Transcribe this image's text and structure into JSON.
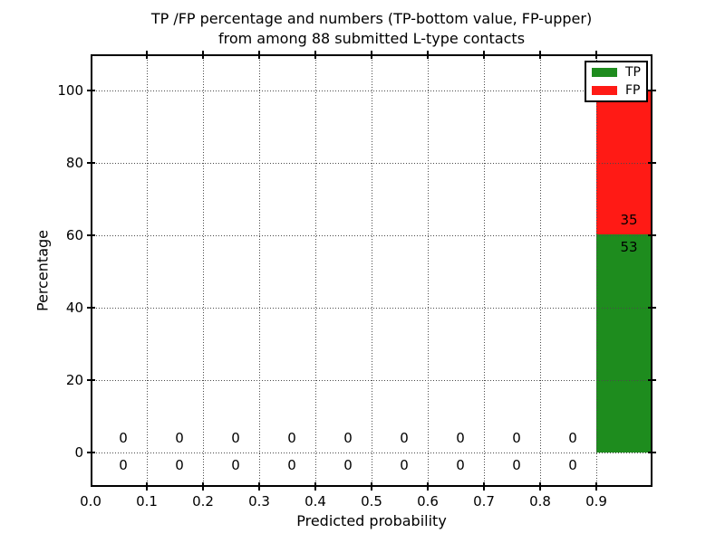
{
  "chart_data": {
    "type": "bar",
    "stacked": true,
    "title_line1": "TP /FP percentage and numbers (TP-bottom value, FP-upper)",
    "title_line2": "from among 88 submitted L-type contacts",
    "xlabel": "Predicted probability",
    "ylabel": "Percentage",
    "total_contacts": 88,
    "x_axis": {
      "min": 0.0,
      "max": 1.0,
      "bin_width": 0.1,
      "tick_values": [
        0.0,
        0.1,
        0.2,
        0.3,
        0.4,
        0.5,
        0.6,
        0.7,
        0.8,
        0.9
      ],
      "tick_labels": [
        "0.0",
        "0.1",
        "0.2",
        "0.3",
        "0.4",
        "0.5",
        "0.6",
        "0.7",
        "0.8",
        "0.9"
      ]
    },
    "y_axis": {
      "min": -9.5,
      "max": 110,
      "tick_values": [
        0,
        20,
        40,
        60,
        80,
        100
      ],
      "tick_labels": [
        "0",
        "20",
        "40",
        "60",
        "80",
        "100"
      ]
    },
    "grid": "dotted",
    "bin_centers": [
      0.05,
      0.15,
      0.25,
      0.35,
      0.45,
      0.55,
      0.65,
      0.75,
      0.85,
      0.95
    ],
    "series": [
      {
        "name": "TP",
        "color": "#1e8c1e",
        "counts": [
          0,
          0,
          0,
          0,
          0,
          0,
          0,
          0,
          0,
          53
        ],
        "percentages": [
          0,
          0,
          0,
          0,
          0,
          0,
          0,
          0,
          0,
          60.2
        ]
      },
      {
        "name": "FP",
        "color": "#ff1a15",
        "counts": [
          0,
          0,
          0,
          0,
          0,
          0,
          0,
          0,
          0,
          35
        ],
        "percentages": [
          0,
          0,
          0,
          0,
          0,
          0,
          0,
          0,
          0,
          39.8
        ]
      }
    ],
    "legend": {
      "position": "upper right",
      "items": [
        {
          "label": "TP",
          "color": "#1e8c1e"
        },
        {
          "label": "FP",
          "color": "#ff1a15"
        }
      ]
    }
  }
}
